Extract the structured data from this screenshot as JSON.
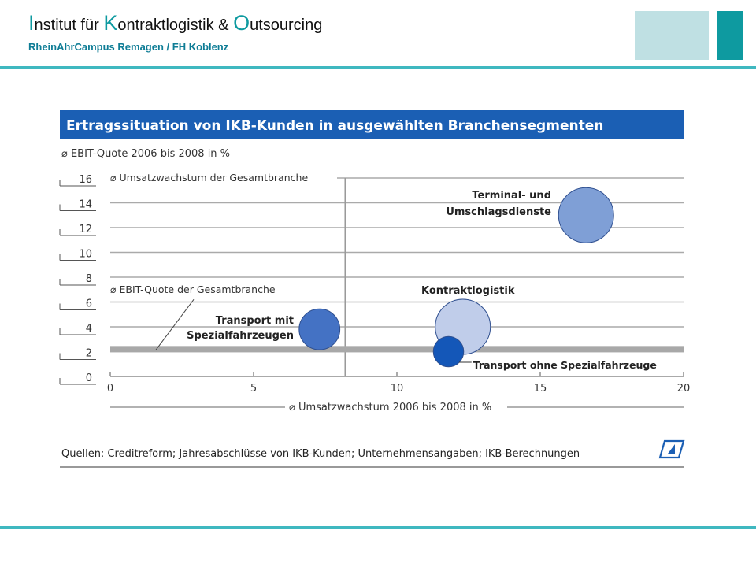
{
  "header": {
    "parts": [
      {
        "cap": "I",
        "rest": "nstitut für "
      },
      {
        "cap": "K",
        "rest": "ontraktlogistik & "
      },
      {
        "cap": "O",
        "rest": "utsourcing"
      }
    ],
    "subtitle": "RheinAhrCampus Remagen / FH Koblenz",
    "cap_color": "#0e9aa0",
    "rule_color": "#3fb8c0"
  },
  "chart_data": {
    "type": "bubble",
    "title": "Ertragssituation von IKB-Kunden in ausgewählten Branchensegmenten",
    "ylabel": "⌀ EBIT-Quote 2006 bis 2008 in %",
    "xlabel": "⌀ Umsatzwachstum 2006 bis 2008 in %",
    "xlim": [
      0,
      20
    ],
    "ylim": [
      0,
      16
    ],
    "xticks": [
      0,
      5,
      10,
      15,
      20
    ],
    "yticks": [
      0,
      2,
      4,
      6,
      8,
      10,
      12,
      14,
      16
    ],
    "grid": true,
    "reference_lines": [
      {
        "axis": "x",
        "value": 8.2,
        "label": "⌀ Umsatzwachstum der Gesamtbranche"
      },
      {
        "axis": "y",
        "value": 2.2,
        "label": "⌀ EBIT-Quote der Gesamtbranche"
      }
    ],
    "series": [
      {
        "name": "Terminal- und Umschlagsdienste",
        "x": 16.6,
        "y": 13.0,
        "size": 1.0,
        "color": "#7f9fd6"
      },
      {
        "name": "Kontraktlogistik",
        "x": 12.3,
        "y": 4.0,
        "size": 1.0,
        "color": "#c0cdea"
      },
      {
        "name": "Transport mit Spezialfahrzeugen",
        "x": 7.3,
        "y": 3.8,
        "size": 0.74,
        "color": "#4472c4"
      },
      {
        "name": "Transport ohne Spezialfahrzeuge",
        "x": 11.8,
        "y": 2.0,
        "size": 0.55,
        "color": "#1457b8"
      }
    ],
    "source": "Quellen: Creditreform; Jahresabschlüsse von IKB-Kunden; Unternehmensangaben; IKB-Berechnungen",
    "title_bg": "#1b5fb4"
  }
}
